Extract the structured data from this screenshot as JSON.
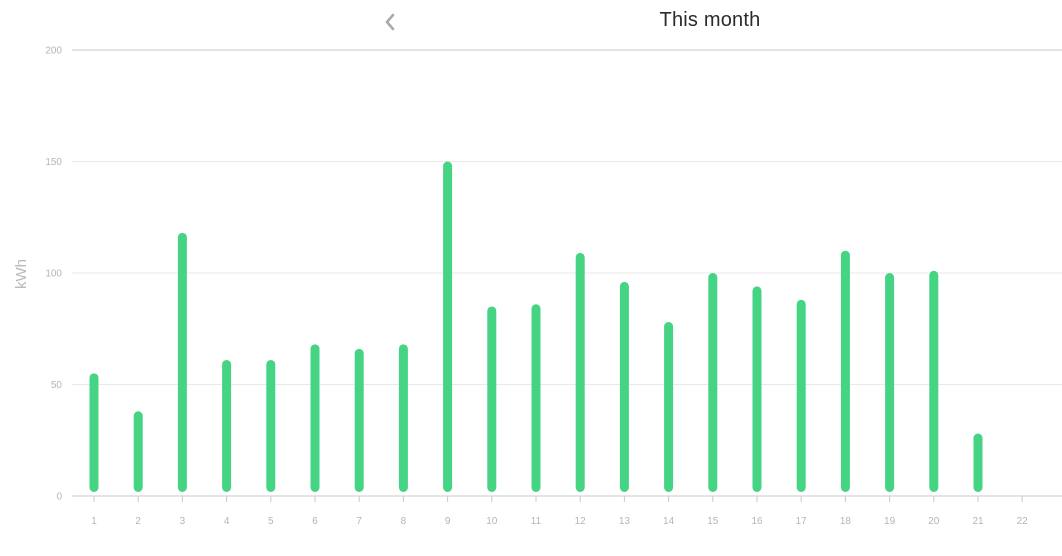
{
  "header": {
    "back_icon": "chevron-left-icon",
    "title": "This month"
  },
  "colors": {
    "bar": "#45d483",
    "grid": "#e9e9e9",
    "axis_line": "#c9c9c9",
    "tick_text": "#b5b5b5",
    "ylabel_text": "#b9b9b9",
    "icon": "#a9a9a9"
  },
  "chart_data": {
    "type": "bar",
    "title": "This month",
    "xlabel": "",
    "ylabel": "kWh",
    "ylim": [
      0,
      200
    ],
    "yticks": [
      0,
      50,
      100,
      150,
      200
    ],
    "categories": [
      "1",
      "2",
      "3",
      "4",
      "5",
      "6",
      "7",
      "8",
      "9",
      "10",
      "11",
      "12",
      "13",
      "14",
      "15",
      "16",
      "17",
      "18",
      "19",
      "20",
      "21",
      "22"
    ],
    "values": [
      55,
      38,
      118,
      61,
      61,
      68,
      66,
      68,
      150,
      85,
      86,
      109,
      96,
      78,
      100,
      94,
      88,
      110,
      100,
      101,
      28,
      0
    ],
    "grid": true,
    "legend": "none"
  }
}
